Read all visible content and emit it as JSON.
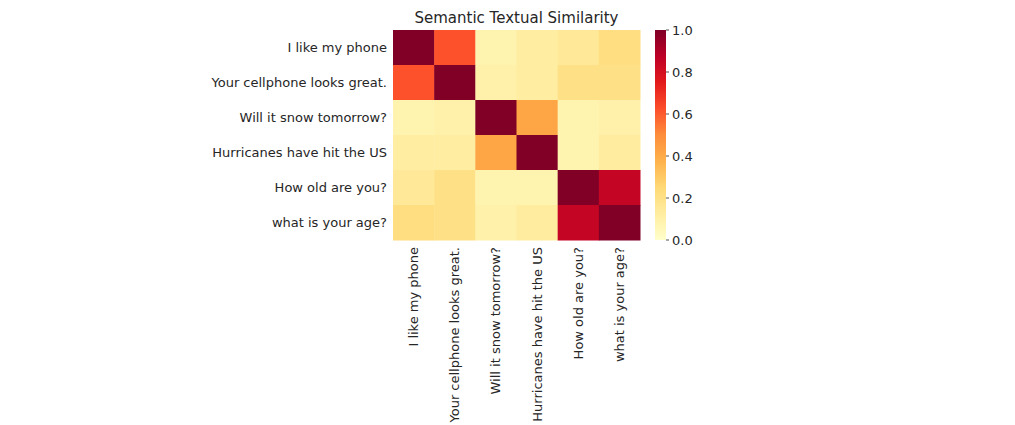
{
  "chart_data": {
    "type": "heatmap",
    "title": "Semantic Textual Similarity",
    "categories": [
      "I like my phone",
      "Your cellphone looks great.",
      "Will it snow tomorrow?",
      "Hurricanes have hit the US",
      "How old are you?",
      "what is your age?"
    ],
    "y_categories": [
      "I like my phone",
      "Your cellphone looks great.",
      "Will it snow tomorrow?",
      "Hurricanes have hit the US",
      "How old are you?",
      "what is your age?"
    ],
    "values": [
      [
        1.0,
        0.62,
        0.08,
        0.12,
        0.15,
        0.22
      ],
      [
        0.62,
        1.0,
        0.1,
        0.12,
        0.2,
        0.2
      ],
      [
        0.08,
        0.1,
        1.0,
        0.42,
        0.08,
        0.1
      ],
      [
        0.12,
        0.12,
        0.42,
        1.0,
        0.08,
        0.13
      ],
      [
        0.15,
        0.2,
        0.08,
        0.08,
        1.0,
        0.85
      ],
      [
        0.22,
        0.2,
        0.1,
        0.13,
        0.85,
        1.0
      ]
    ],
    "color": "YlOrRd",
    "colorbar_lim": [
      0,
      1
    ],
    "colorbar_ticks": [
      {
        "value": 0,
        "label": "0.0"
      },
      {
        "value": 0.2,
        "label": "0.2"
      },
      {
        "value": 0.4,
        "label": "0.4"
      },
      {
        "value": 0.6,
        "label": "0.6"
      },
      {
        "value": 0.8,
        "label": "0.8"
      },
      {
        "value": 1,
        "label": "1.0"
      }
    ],
    "grid": false
  }
}
